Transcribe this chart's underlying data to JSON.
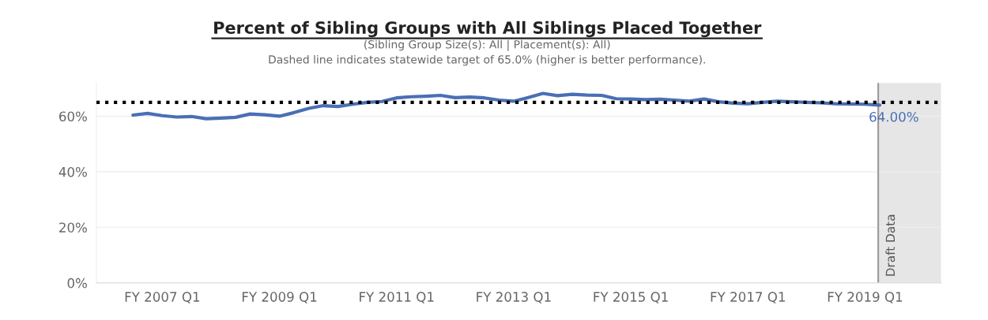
{
  "chart_data": {
    "type": "line",
    "title": "Percent of Sibling Groups with All Siblings Placed Together",
    "subtitle": "(Sibling Group Size(s): All | Placement(s): All)\nDashed line indicates statewide target of 65.0% (higher is better performance).",
    "categories": [
      null,
      null,
      "FY 2007 Q1",
      null,
      null,
      null,
      null,
      null,
      null,
      null,
      "FY 2009 Q1",
      null,
      null,
      null,
      null,
      null,
      null,
      null,
      "FY 2011 Q1",
      null,
      null,
      null,
      null,
      null,
      null,
      null,
      "FY 2013 Q1",
      null,
      null,
      null,
      null,
      null,
      null,
      null,
      "FY 2015 Q1",
      null,
      null,
      null,
      null,
      null,
      null,
      null,
      "FY 2017 Q1",
      null,
      null,
      null,
      null,
      null,
      null,
      null,
      "FY 2019 Q1",
      null
    ],
    "series": [
      {
        "color": "#4a6fb5",
        "values": [
          60.4,
          61.0,
          60.2,
          59.7,
          59.9,
          59.1,
          59.3,
          59.6,
          60.8,
          60.5,
          60.0,
          61.3,
          62.8,
          63.8,
          63.5,
          64.3,
          65.0,
          65.3,
          66.6,
          67.0,
          67.2,
          67.5,
          66.7,
          66.9,
          66.6,
          65.8,
          65.4,
          66.7,
          68.2,
          67.4,
          67.9,
          67.6,
          67.5,
          66.3,
          66.2,
          66.0,
          66.1,
          65.8,
          65.4,
          66.2,
          65.2,
          64.7,
          64.5,
          65.0,
          65.4,
          65.2,
          65.0,
          64.8,
          64.5,
          64.4,
          64.3,
          64.0
        ]
      }
    ],
    "ylim": [
      0,
      72
    ],
    "yticks": [
      {
        "value": 0,
        "label": "0%"
      },
      {
        "value": 20,
        "label": "20%"
      },
      {
        "value": 40,
        "label": "40%"
      },
      {
        "value": 60,
        "label": "60%"
      }
    ],
    "ref_lines": [
      {
        "axis": "y",
        "value": 65,
        "color": "#000000",
        "line_style": "dotted"
      }
    ],
    "annotations": [
      {
        "text": "64.00%",
        "y": 64
      },
      "Draft Data"
    ],
    "grid": "y",
    "marker": "none",
    "line_style": "solid",
    "legend": false
  }
}
